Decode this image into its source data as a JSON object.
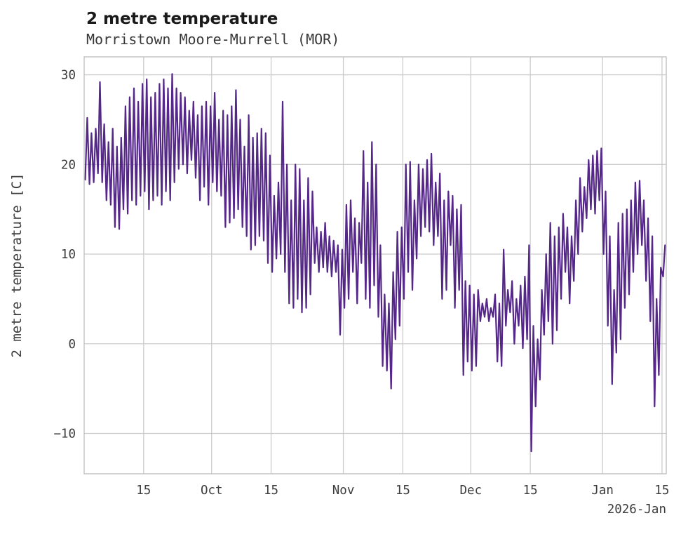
{
  "header": {
    "title": "2 metre temperature",
    "subtitle": "Morristown Moore-Murrell (MOR)"
  },
  "chart_data": {
    "type": "line",
    "title": "2 metre temperature",
    "subtitle": "Morristown Moore-Murrell (MOR)",
    "xlabel": "",
    "ylabel": "2 metre temperature [C]",
    "x_corner_label": "2026-Jan",
    "legend": "none",
    "grid": true,
    "grid_color": "#cccccc",
    "axis_color": "#c2c2c2",
    "line_color": "#542788",
    "ylim": [
      -14.5,
      32
    ],
    "xlim_days": [
      0,
      137
    ],
    "y_ticks": [
      {
        "value": -10,
        "label": "−10"
      },
      {
        "value": 0,
        "label": "0"
      },
      {
        "value": 10,
        "label": "10"
      },
      {
        "value": 20,
        "label": "20"
      },
      {
        "value": 30,
        "label": "30"
      }
    ],
    "x_ticks": [
      {
        "day": 14,
        "label": "15"
      },
      {
        "day": 30,
        "label": "Oct"
      },
      {
        "day": 44,
        "label": "15"
      },
      {
        "day": 61,
        "label": "Nov"
      },
      {
        "day": 75,
        "label": "15"
      },
      {
        "day": 91,
        "label": "Dec"
      },
      {
        "day": 105,
        "label": "15"
      },
      {
        "day": 122,
        "label": "Jan"
      },
      {
        "day": 136,
        "label": "15"
      }
    ],
    "x_unit": "days from chart start (day 0 = early Sep, day 136 = Jan 15 2026)",
    "series": [
      {
        "name": "daily_min_C",
        "values": [
          18.3,
          17.8,
          18.0,
          19.0,
          18.0,
          16.0,
          15.5,
          13.0,
          12.8,
          15.0,
          14.5,
          16.0,
          15.5,
          16.5,
          17.0,
          15.0,
          16.0,
          16.5,
          15.5,
          17.0,
          16.0,
          18.0,
          19.5,
          20.0,
          19.0,
          20.5,
          18.5,
          16.0,
          17.5,
          15.5,
          18.0,
          17.0,
          16.5,
          13.0,
          13.5,
          14.0,
          15.0,
          13.0,
          12.0,
          10.5,
          11.0,
          12.0,
          11.5,
          9.0,
          8.0,
          9.5,
          10.0,
          8.0,
          4.5,
          4.0,
          5.0,
          3.5,
          4.0,
          5.5,
          9.0,
          8.0,
          8.5,
          8.0,
          7.5,
          8.0,
          1.0,
          4.0,
          5.0,
          8.0,
          4.5,
          9.0,
          5.0,
          4.0,
          6.5,
          3.0,
          -2.5,
          -3.0,
          -5.0,
          0.5,
          2.0,
          5.0,
          8.0,
          6.0,
          9.5,
          12.0,
          13.0,
          12.5,
          11.0,
          12.0,
          5.0,
          6.0,
          11.0,
          4.0,
          6.0,
          -3.5,
          -2.0,
          -3.0,
          -2.5,
          2.5,
          3.0,
          2.5,
          3.0,
          -2.0,
          -2.5,
          2.0,
          3.5,
          0.0,
          2.0,
          -0.5,
          0.5,
          -12.0,
          -7.0,
          -4.0,
          1.0,
          2.5,
          0.0,
          1.5,
          5.0,
          8.0,
          4.5,
          7.0,
          10.0,
          12.5,
          14.0,
          15.0,
          14.5,
          16.0,
          10.0,
          2.0,
          -4.5,
          -1.0,
          0.5,
          4.0,
          5.5,
          8.0,
          10.0,
          11.0,
          7.0,
          2.5,
          -7.0,
          -3.5,
          7.5
        ]
      },
      {
        "name": "daily_max_C",
        "values": [
          25.2,
          23.5,
          24.0,
          29.2,
          24.5,
          22.5,
          24.0,
          22.0,
          23.0,
          26.5,
          27.5,
          28.5,
          27.0,
          29.0,
          29.5,
          27.5,
          28.0,
          29.0,
          29.5,
          28.5,
          30.1,
          28.5,
          28.0,
          27.5,
          26.0,
          27.0,
          25.5,
          26.5,
          27.0,
          26.5,
          28.0,
          25.0,
          26.0,
          25.5,
          26.5,
          28.3,
          25.0,
          22.0,
          25.5,
          23.0,
          23.5,
          24.0,
          23.5,
          21.0,
          16.5,
          18.0,
          27.0,
          20.0,
          16.0,
          20.0,
          19.5,
          16.0,
          18.5,
          17.0,
          13.0,
          12.5,
          13.5,
          12.0,
          11.5,
          11.0,
          10.5,
          15.5,
          16.0,
          14.0,
          13.5,
          21.5,
          18.0,
          22.5,
          20.0,
          11.0,
          5.5,
          4.5,
          8.0,
          12.5,
          13.0,
          20.0,
          20.3,
          16.0,
          20.0,
          19.5,
          20.5,
          21.2,
          18.0,
          19.0,
          16.0,
          17.0,
          16.5,
          15.0,
          15.5,
          7.0,
          6.5,
          5.5,
          6.0,
          4.5,
          5.0,
          4.0,
          5.5,
          4.5,
          10.5,
          6.0,
          7.0,
          5.0,
          6.5,
          7.5,
          11.0,
          2.0,
          0.5,
          6.0,
          10.0,
          13.5,
          12.0,
          13.0,
          14.5,
          13.0,
          12.0,
          16.0,
          18.5,
          17.5,
          20.5,
          21.0,
          21.5,
          21.8,
          17.0,
          12.0,
          6.0,
          13.5,
          14.5,
          15.0,
          16.0,
          18.0,
          18.2,
          16.0,
          14.0,
          12.0,
          5.0,
          8.5,
          11.0
        ]
      }
    ]
  }
}
